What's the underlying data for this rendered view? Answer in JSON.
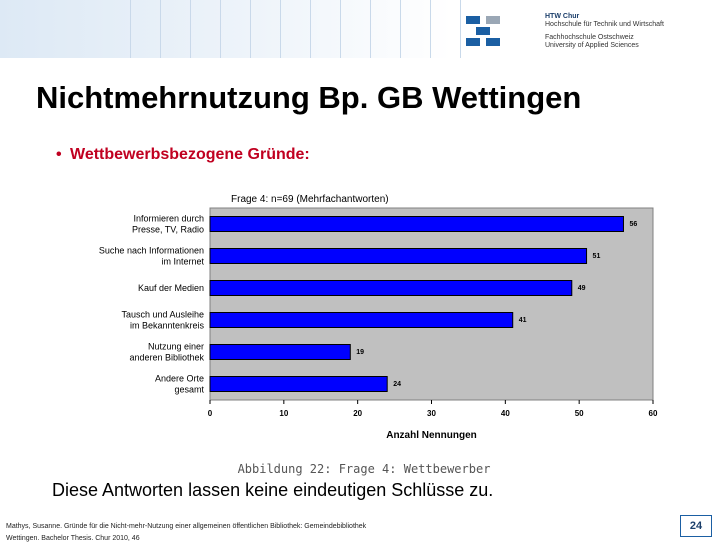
{
  "header": {
    "logo_line1": "HTW Chur",
    "logo_line2": "Hochschule für Technik und Wirtschaft",
    "logo_line3": "Fachhochschule Ostschweiz",
    "logo_line4": "University of Applied Sciences"
  },
  "slide": {
    "title": "Nichtmehrnutzung Bp. GB Wettingen",
    "bullet_marker": "•",
    "bullet": "Wettbewerbsbezogene Gründe:",
    "caption": "Abbildung 22: Frage 4: Wettbewerber",
    "conclusion": "Diese Antworten lassen keine eindeutigen Schlüsse zu.",
    "footer_line1": "Mathys, Susanne. Gründe für die Nicht-mehr-Nutzung einer allgemeinen öffentlichen Bibliothek: Gemeindebibliothek",
    "footer_line2": "Wettingen. Bachelor Thesis. Chur  2010, 46",
    "page_number": "24"
  },
  "chart_data": {
    "type": "bar",
    "orientation": "horizontal",
    "title": "Frage 4: n=69 (Mehrfachantworten)",
    "xlabel": "Anzahl Nennungen",
    "ylabel": "",
    "categories": [
      [
        "Informieren durch",
        "Presse, TV, Radio"
      ],
      [
        "Suche nach Informationen",
        "im Internet"
      ],
      [
        "Kauf der Medien"
      ],
      [
        "Tausch und Ausleihe",
        "im Bekanntenkreis"
      ],
      [
        "Nutzung einer",
        "anderen Bibliothek"
      ],
      [
        "Andere Orte",
        "gesamt"
      ]
    ],
    "values": [
      56,
      51,
      49,
      41,
      19,
      24
    ],
    "value_labels": [
      "56",
      "51",
      "49",
      "41",
      "19",
      "24"
    ],
    "xlim": [
      0,
      60
    ],
    "xticks": [
      0,
      10,
      20,
      30,
      40,
      50,
      60
    ],
    "grid": false,
    "colors": {
      "bar": "#0000ff",
      "plot_bg": "#c0c0c0"
    }
  }
}
